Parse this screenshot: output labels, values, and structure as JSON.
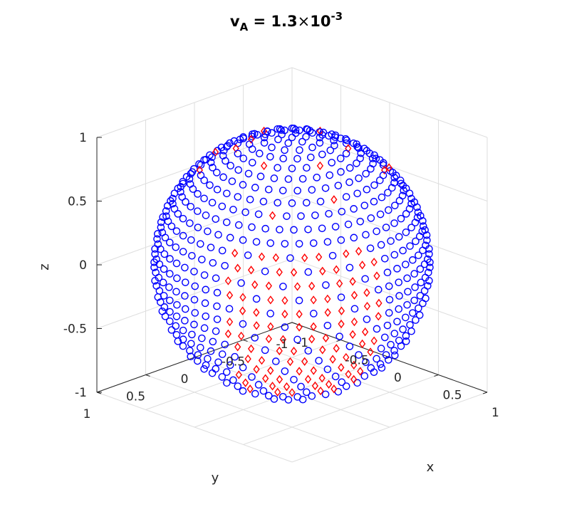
{
  "chart_data": {
    "type": "scatter3d",
    "title": {
      "main": "v",
      "subscript": "A",
      "rest": " = 1.3",
      "times": "×",
      "base": "10",
      "superscript": "-3"
    },
    "xlabel": "x",
    "ylabel": "y",
    "zlabel": "z",
    "xlim": [
      -1,
      1
    ],
    "ylim": [
      -1,
      1
    ],
    "zlim": [
      -1,
      1
    ],
    "x_ticks": [
      "-1",
      "-0.5",
      "0",
      "0.5",
      "1"
    ],
    "y_ticks": [
      "1",
      "0.5",
      "0",
      "-0.5",
      "-1"
    ],
    "z_ticks": [
      "-1",
      "-0.5",
      "0",
      "0.5",
      "1"
    ],
    "grid": true,
    "surface": "unit sphere",
    "n_latitude_rings": 30,
    "series": [
      {
        "marker": "circle",
        "color": "#0000ff"
      },
      {
        "marker": "diamond",
        "color": "#ff0000"
      }
    ]
  }
}
